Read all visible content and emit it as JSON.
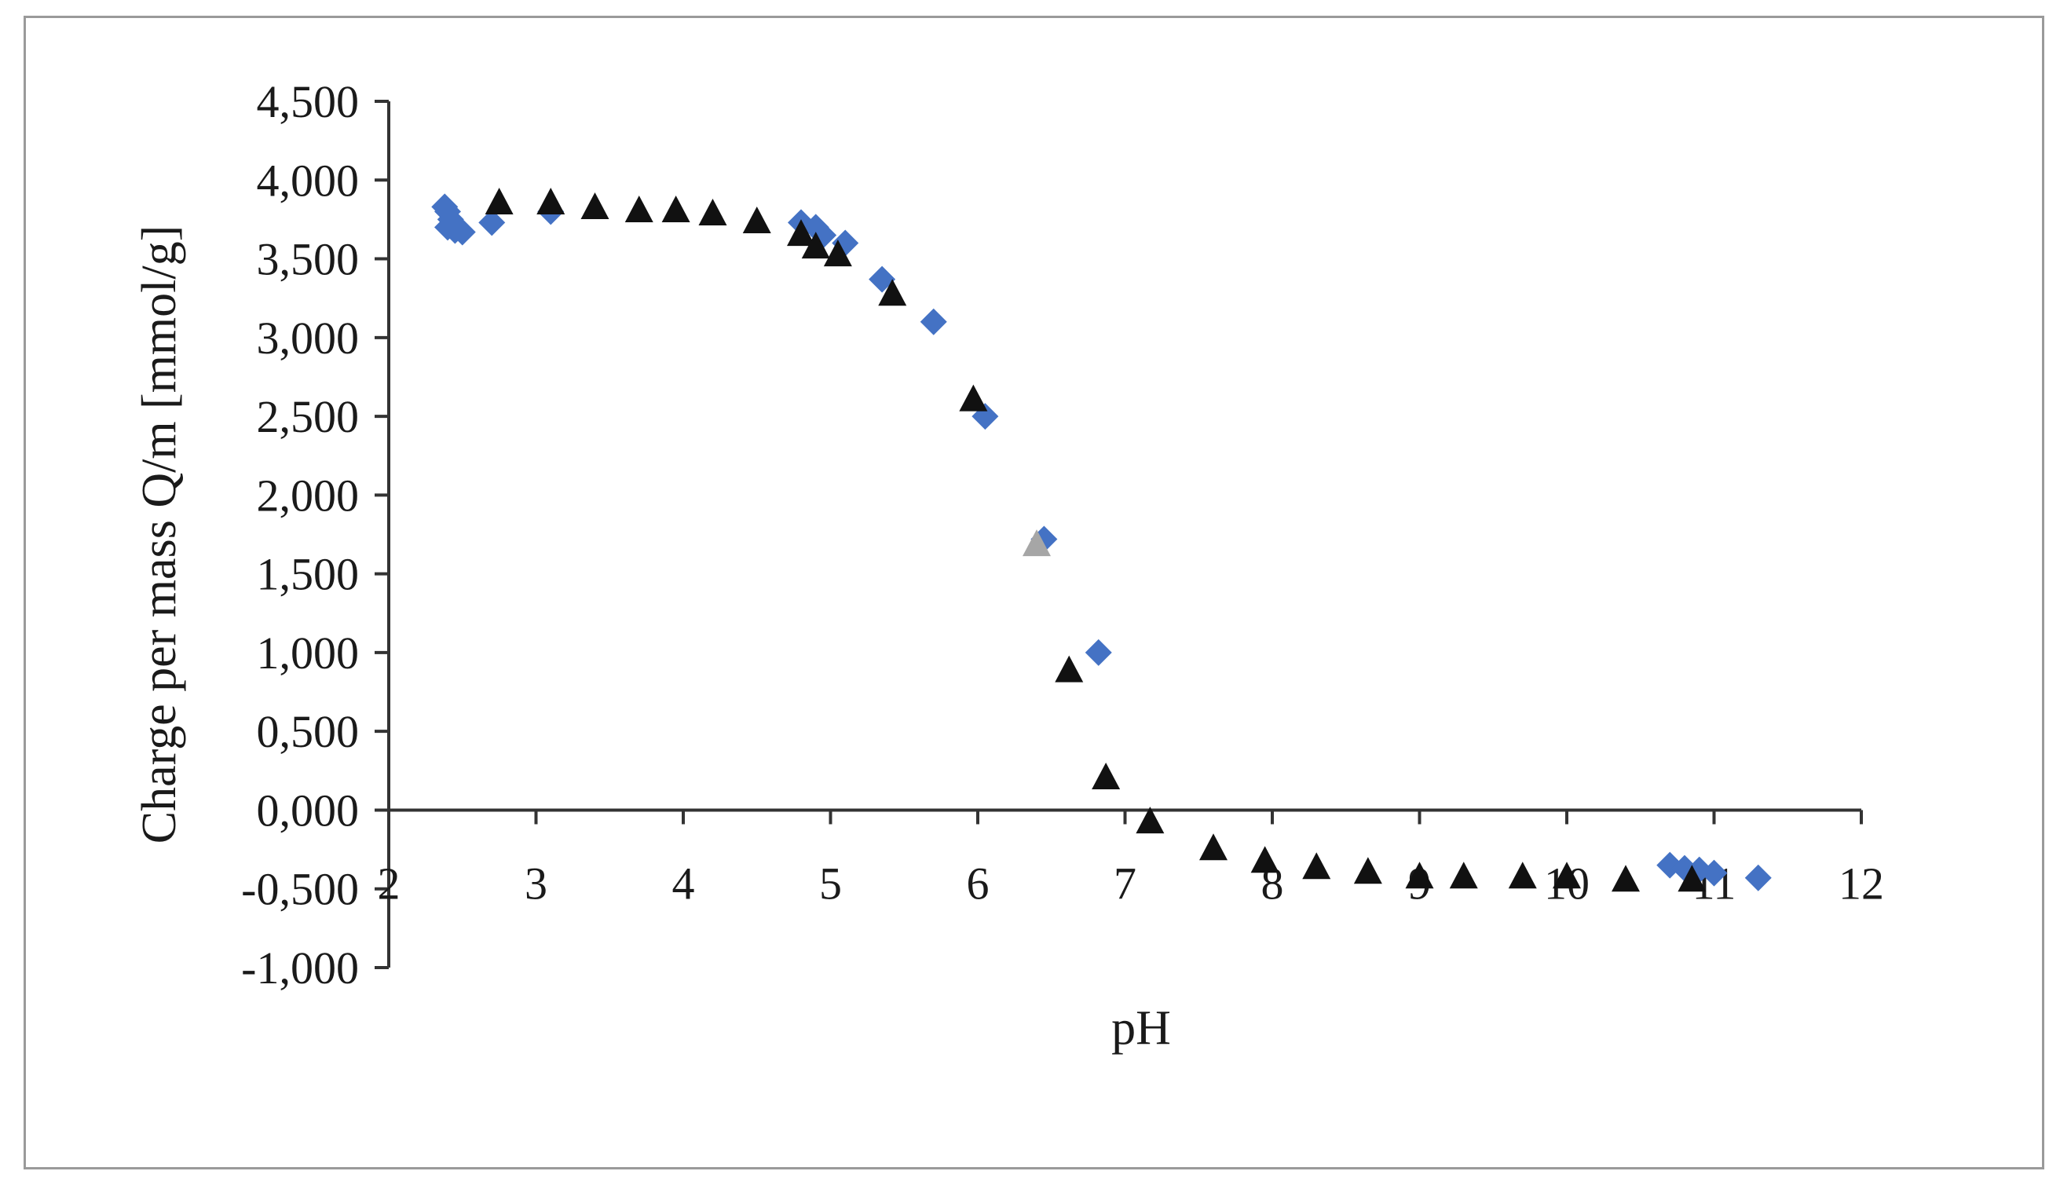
{
  "chart_data": {
    "type": "scatter",
    "title": "",
    "xlabel": "pH",
    "ylabel": "Charge per mass Q/m  [mmol/g]",
    "xlim": [
      2,
      12
    ],
    "ylim": [
      -1.0,
      4.5
    ],
    "x_ticks": [
      "2",
      "3",
      "4",
      "5",
      "6",
      "7",
      "8",
      "9",
      "10",
      "11",
      "12"
    ],
    "y_ticks": [
      "4,500",
      "4,000",
      "3,500",
      "3,000",
      "2,500",
      "2,000",
      "1,500",
      "1,000",
      "0,500",
      "0,000",
      "-0,500",
      "-1,000"
    ],
    "grid": false,
    "legend": "none",
    "series": [
      {
        "marker": "diamond",
        "color": "#4472c4",
        "points": [
          [
            2.38,
            3.83
          ],
          [
            2.4,
            3.8
          ],
          [
            2.42,
            3.75
          ],
          [
            2.4,
            3.7
          ],
          [
            2.45,
            3.68
          ],
          [
            2.5,
            3.67
          ],
          [
            2.7,
            3.73
          ],
          [
            3.1,
            3.8
          ],
          [
            4.8,
            3.73
          ],
          [
            4.9,
            3.7
          ],
          [
            4.95,
            3.65
          ],
          [
            5.1,
            3.6
          ],
          [
            5.35,
            3.37
          ],
          [
            5.7,
            3.1
          ],
          [
            6.05,
            2.5
          ],
          [
            6.45,
            1.72
          ],
          [
            6.82,
            1.0
          ],
          [
            10.7,
            -0.35
          ],
          [
            10.8,
            -0.37
          ],
          [
            10.9,
            -0.38
          ],
          [
            11.0,
            -0.4
          ],
          [
            11.3,
            -0.43
          ]
        ]
      },
      {
        "marker": "triangle",
        "color": "#111111",
        "points": [
          [
            2.75,
            3.85
          ],
          [
            3.1,
            3.85
          ],
          [
            3.4,
            3.82
          ],
          [
            3.7,
            3.8
          ],
          [
            3.95,
            3.8
          ],
          [
            4.2,
            3.78
          ],
          [
            4.5,
            3.73
          ],
          [
            4.8,
            3.65
          ],
          [
            4.9,
            3.57
          ],
          [
            5.05,
            3.52
          ],
          [
            5.42,
            3.27
          ],
          [
            5.97,
            2.6
          ],
          [
            6.62,
            0.88
          ],
          [
            6.87,
            0.2
          ],
          [
            7.17,
            -0.08
          ],
          [
            7.6,
            -0.25
          ],
          [
            7.95,
            -0.33
          ],
          [
            8.3,
            -0.37
          ],
          [
            8.65,
            -0.4
          ],
          [
            9.0,
            -0.43
          ],
          [
            9.3,
            -0.43
          ],
          [
            9.7,
            -0.43
          ],
          [
            10.0,
            -0.43
          ],
          [
            10.4,
            -0.45
          ],
          [
            10.85,
            -0.45
          ]
        ]
      },
      {
        "marker": "triangle",
        "color": "#a6a6a6",
        "points": [
          [
            6.4,
            1.68
          ]
        ]
      }
    ]
  }
}
